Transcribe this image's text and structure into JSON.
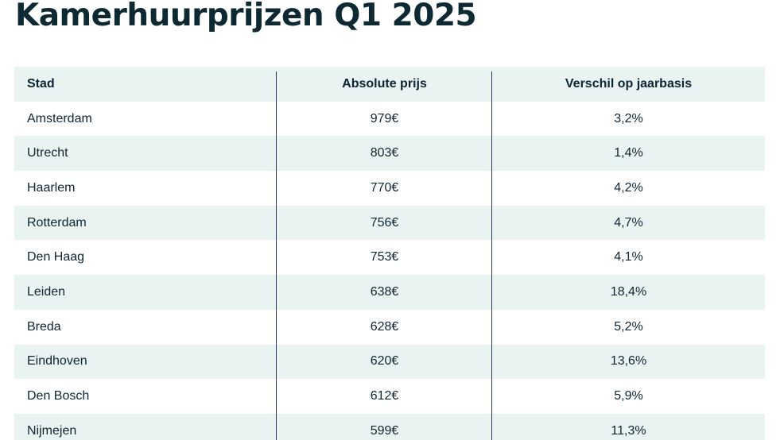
{
  "title": "Kamerhuurprijzen Q1 2025",
  "table": {
    "headers": [
      "Stad",
      "Absolute prijs",
      "Verschil op jaarbasis"
    ],
    "rows": [
      [
        "Amsterdam",
        "979€",
        "3,2%"
      ],
      [
        "Utrecht",
        "803€",
        "1,4%"
      ],
      [
        "Haarlem",
        "770€",
        "4,2%"
      ],
      [
        "Rotterdam",
        "756€",
        "4,7%"
      ],
      [
        "Den Haag",
        "753€",
        "4,1%"
      ],
      [
        "Leiden",
        "638€",
        "18,4%"
      ],
      [
        "Breda",
        "628€",
        "5,2%"
      ],
      [
        "Eindhoven",
        "620€",
        "13,6%"
      ],
      [
        "Den Bosch",
        "612€",
        "5,9%"
      ],
      [
        "Nijmejen",
        "599€",
        "11,3%"
      ]
    ]
  },
  "colors": {
    "stripe": "#e9f4f2",
    "divider": "#2b3a55",
    "text": "#0d2333"
  }
}
